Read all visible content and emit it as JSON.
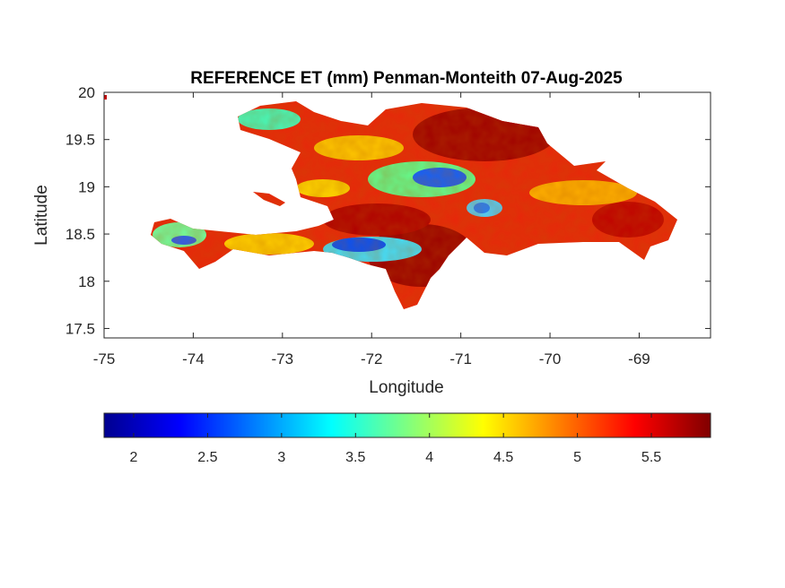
{
  "chart_data": {
    "type": "heatmap",
    "title": "REFERENCE ET (mm) Penman-Monteith 07-Aug-2025",
    "xlabel": "Longitude",
    "ylabel": "Latitude",
    "xlim": [
      -75,
      -68.2
    ],
    "ylim": [
      17.4,
      20
    ],
    "x_ticks": [
      -75,
      -74,
      -73,
      -72,
      -71,
      -70,
      -69
    ],
    "y_ticks": [
      17.5,
      18,
      18.5,
      19,
      19.5,
      20
    ],
    "x_tick_labels": [
      "-75",
      "-74",
      "-73",
      "-72",
      "-71",
      "-70",
      "-69"
    ],
    "y_tick_labels": [
      "17.5",
      "18",
      "18.5",
      "19",
      "19.5",
      "20"
    ],
    "colorbar": {
      "colormap": "jet",
      "range": [
        1.8,
        5.9
      ],
      "orientation": "horizontal",
      "ticks": [
        2,
        2.5,
        3,
        3.5,
        4,
        4.5,
        5,
        5.5
      ],
      "tick_labels": [
        "2",
        "2.5",
        "3",
        "3.5",
        "4",
        "4.5",
        "5",
        "5.5"
      ]
    },
    "grid": false,
    "region": "Hispaniola (Haiti and Dominican Republic)",
    "colors": {
      "low": "#00008f",
      "mid": "#ffff00",
      "high": "#800000"
    }
  }
}
